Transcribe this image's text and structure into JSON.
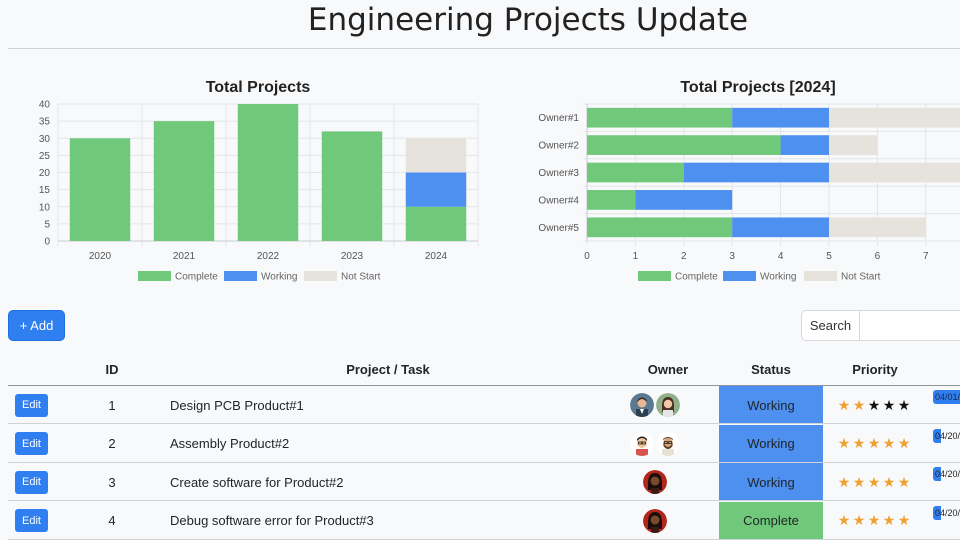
{
  "page": {
    "title": "Engineering Projects Update"
  },
  "chart_data": [
    {
      "type": "bar",
      "stacked": true,
      "orientation": "vertical",
      "title": "Total Projects",
      "categories": [
        "2020",
        "2021",
        "2022",
        "2023",
        "2024"
      ],
      "series": [
        {
          "name": "Complete",
          "color": "#70c97a",
          "values": [
            30,
            35,
            40,
            32,
            10
          ]
        },
        {
          "name": "Working",
          "color": "#4d90f0",
          "values": [
            0,
            0,
            0,
            0,
            10
          ]
        },
        {
          "name": "Not Start",
          "color": "#e6e2dc",
          "values": [
            0,
            0,
            0,
            0,
            10
          ]
        }
      ],
      "ylim": [
        0,
        40
      ],
      "yticks": [
        "0",
        "5",
        "10",
        "15",
        "20",
        "25",
        "30",
        "35",
        "40"
      ],
      "grid": true,
      "legend": "bottom"
    },
    {
      "type": "bar",
      "stacked": true,
      "orientation": "horizontal",
      "title": "Total Projects [2024]",
      "categories": [
        "Owner#1",
        "Owner#2",
        "Owner#3",
        "Owner#4",
        "Owner#5"
      ],
      "series": [
        {
          "name": "Complete",
          "color": "#70c97a",
          "values": [
            3,
            4,
            2,
            1,
            3
          ]
        },
        {
          "name": "Working",
          "color": "#4d90f0",
          "values": [
            2,
            1,
            3,
            2,
            2
          ]
        },
        {
          "name": "Not Start",
          "color": "#e6e2dc",
          "values": [
            3,
            1,
            3,
            0,
            2
          ]
        }
      ],
      "xlim": [
        0,
        8
      ],
      "xticks": [
        "0",
        "1",
        "2",
        "3",
        "4",
        "5",
        "6",
        "7"
      ],
      "grid": true,
      "legend": "bottom"
    }
  ],
  "toolbar": {
    "add_label": "+ Add",
    "search_label": "Search",
    "search_placeholder": ""
  },
  "table": {
    "headers": {
      "id": "ID",
      "project": "Project / Task",
      "owner": "Owner",
      "status": "Status",
      "priority": "Priority"
    },
    "rows": [
      {
        "edit": "Edit",
        "id": "1",
        "project": "Design PCB Product#1",
        "owners": [
          "man-suit-avatar",
          "woman-avatar"
        ],
        "status": "Working",
        "status_color": "#4d90f0",
        "priority": 2,
        "date": "04/01/"
      },
      {
        "edit": "Edit",
        "id": "2",
        "project": "Assembly Product#2",
        "owners": [
          "man-glasses-avatar",
          "man-beard-avatar"
        ],
        "status": "Working",
        "status_color": "#4d90f0",
        "priority": 5,
        "date": "04/20/"
      },
      {
        "edit": "Edit",
        "id": "3",
        "project": "Create software for Product#2",
        "owners": [
          "woman-dark-avatar"
        ],
        "status": "Working",
        "status_color": "#4d90f0",
        "priority": 5,
        "date": "04/20/"
      },
      {
        "edit": "Edit",
        "id": "4",
        "project": "Debug software error for Product#3",
        "owners": [
          "woman-dark-avatar"
        ],
        "status": "Complete",
        "status_color": "#70c97a",
        "priority": 5,
        "date": "04/20/"
      }
    ],
    "star_colors": {
      "on": "#f0a030",
      "off": "#111111"
    }
  }
}
